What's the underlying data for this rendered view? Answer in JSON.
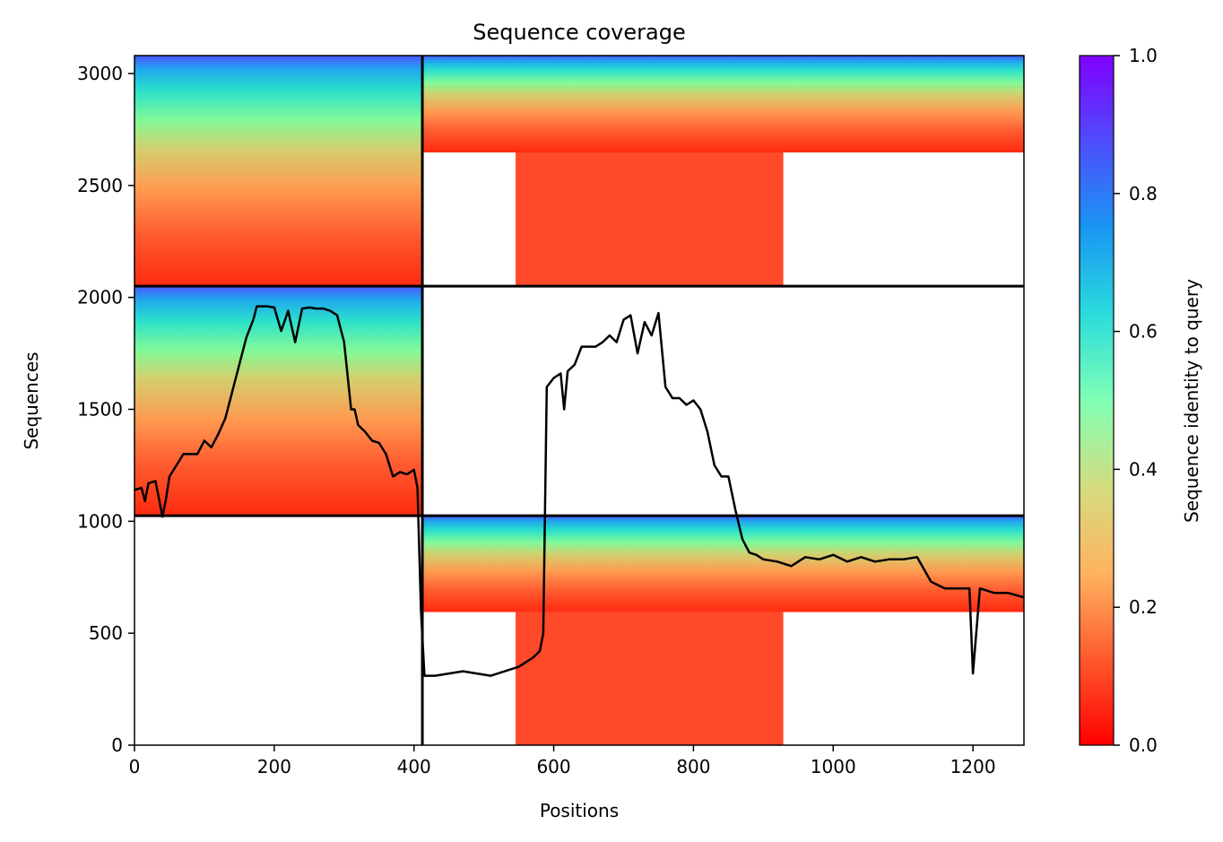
{
  "chart_data": {
    "type": "heatmap",
    "title": "Sequence coverage",
    "xlabel": "Positions",
    "ylabel": "Sequences",
    "xlim": [
      0,
      1273
    ],
    "ylim": [
      0,
      3080
    ],
    "xticks": [
      0,
      200,
      400,
      600,
      800,
      1000,
      1200
    ],
    "yticks": [
      0,
      500,
      1000,
      1500,
      2000,
      2500,
      3000
    ],
    "colorbar": {
      "label": "Sequence identity to query",
      "colormap": "rainbow",
      "range": [
        0.0,
        1.0
      ],
      "ticks": [
        0.0,
        0.2,
        0.4,
        0.6,
        0.8,
        1.0
      ]
    },
    "blocks": [
      {
        "x": [
          0,
          412
        ],
        "y": [
          2050,
          3080
        ],
        "density": "full"
      },
      {
        "x": [
          412,
          1273
        ],
        "y": [
          2050,
          3080
        ],
        "density": "partial"
      },
      {
        "x": [
          0,
          412
        ],
        "y": [
          1025,
          2050
        ],
        "density": "full"
      },
      {
        "x": [
          412,
          1273
        ],
        "y": [
          1025,
          2050
        ],
        "density": "empty"
      },
      {
        "x": [
          0,
          412
        ],
        "y": [
          0,
          1025
        ],
        "density": "empty"
      },
      {
        "x": [
          412,
          1273
        ],
        "y": [
          0,
          1025
        ],
        "density": "partial"
      }
    ],
    "block_boundaries": {
      "x": [
        412
      ],
      "y": [
        1025,
        2050
      ]
    },
    "coverage_line": {
      "color": "#000000",
      "x": [
        0,
        10,
        15,
        20,
        30,
        40,
        45,
        50,
        60,
        70,
        90,
        100,
        110,
        120,
        130,
        140,
        150,
        160,
        170,
        175,
        180,
        190,
        200,
        210,
        220,
        230,
        240,
        250,
        260,
        270,
        280,
        290,
        300,
        310,
        315,
        320,
        330,
        340,
        350,
        360,
        370,
        380,
        390,
        400,
        405,
        410,
        415,
        430,
        450,
        470,
        490,
        510,
        530,
        550,
        570,
        580,
        585,
        590,
        600,
        610,
        615,
        620,
        630,
        640,
        650,
        660,
        670,
        680,
        690,
        700,
        710,
        720,
        730,
        740,
        750,
        760,
        770,
        780,
        790,
        800,
        810,
        820,
        830,
        840,
        850,
        860,
        870,
        880,
        890,
        900,
        920,
        940,
        960,
        980,
        1000,
        1020,
        1040,
        1060,
        1080,
        1100,
        1120,
        1140,
        1160,
        1180,
        1195,
        1200,
        1210,
        1230,
        1250,
        1273
      ],
      "y": [
        1140,
        1150,
        1090,
        1170,
        1180,
        1020,
        1100,
        1200,
        1250,
        1300,
        1300,
        1360,
        1330,
        1390,
        1460,
        1580,
        1700,
        1820,
        1900,
        1960,
        1960,
        1960,
        1955,
        1850,
        1940,
        1800,
        1950,
        1955,
        1950,
        1950,
        1940,
        1920,
        1800,
        1500,
        1500,
        1430,
        1400,
        1360,
        1350,
        1300,
        1200,
        1220,
        1210,
        1230,
        1150,
        600,
        310,
        310,
        320,
        330,
        320,
        310,
        330,
        350,
        390,
        420,
        500,
        1600,
        1640,
        1660,
        1500,
        1670,
        1700,
        1780,
        1780,
        1780,
        1800,
        1830,
        1800,
        1900,
        1920,
        1750,
        1890,
        1830,
        1930,
        1600,
        1550,
        1550,
        1520,
        1540,
        1500,
        1400,
        1250,
        1200,
        1200,
        1050,
        920,
        860,
        850,
        830,
        820,
        800,
        840,
        830,
        850,
        820,
        840,
        820,
        830,
        830,
        840,
        730,
        700,
        700,
        700,
        320,
        700,
        680,
        680,
        660
      ]
    }
  }
}
